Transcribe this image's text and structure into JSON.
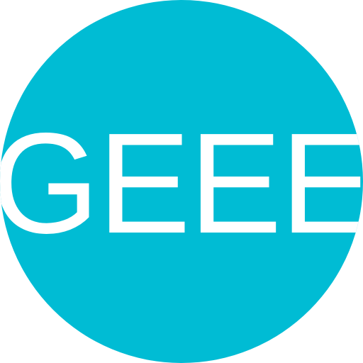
{
  "avatar": {
    "initials": "GEEE",
    "background_color": "#00BCD4",
    "text_color": "#FFFFFF"
  }
}
